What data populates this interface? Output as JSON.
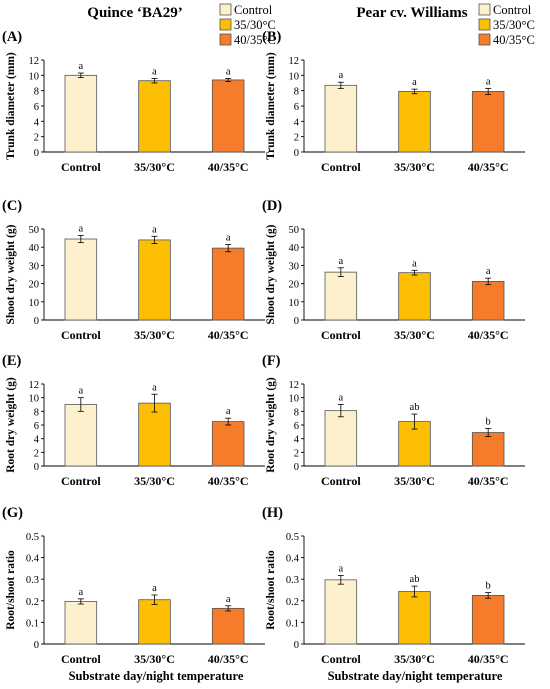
{
  "columns": [
    {
      "title": "Quince ‘BA29’"
    },
    {
      "title": "Pear cv. Williams"
    }
  ],
  "legend": {
    "entries": [
      {
        "label": "Control",
        "color": "#fdf0cd"
      },
      {
        "label": "35/30°C",
        "color": "#fcbf04"
      },
      {
        "label": "40/35°C",
        "color": "#f47c2a"
      }
    ],
    "placement": "top-right of each column"
  },
  "xlabel": "Substrate day/night temperature",
  "chart_data": [
    {
      "panel": "(A)",
      "type": "bar",
      "column": 0,
      "row": 0,
      "categories": [
        "Control",
        "35/30°C",
        "40/35°C"
      ],
      "values": [
        10.0,
        9.3,
        9.4
      ],
      "errors": [
        0.3,
        0.3,
        0.2
      ],
      "letters": [
        "a",
        "a",
        "a"
      ],
      "ylabel": "Trunk diameter (mm)",
      "ylim": [
        0,
        12
      ],
      "yticks": [
        0,
        2,
        4,
        6,
        8,
        10,
        12
      ]
    },
    {
      "panel": "(B)",
      "type": "bar",
      "column": 1,
      "row": 0,
      "categories": [
        "Control",
        "35/30°C",
        "40/35°C"
      ],
      "values": [
        8.7,
        7.9,
        7.9
      ],
      "errors": [
        0.4,
        0.3,
        0.4
      ],
      "letters": [
        "a",
        "a",
        "a"
      ],
      "ylabel": "Trunk diameter (mm)",
      "ylim": [
        0,
        12
      ],
      "yticks": [
        0,
        2,
        4,
        6,
        8,
        10,
        12
      ]
    },
    {
      "panel": "(C)",
      "type": "bar",
      "column": 0,
      "row": 1,
      "categories": [
        "Control",
        "35/30°C",
        "40/35°C"
      ],
      "values": [
        44.5,
        44.0,
        39.5
      ],
      "errors": [
        2.0,
        2.0,
        2.0
      ],
      "letters": [
        "a",
        "a",
        "a"
      ],
      "ylabel": "Shoot dry weight (g)",
      "ylim": [
        0,
        50
      ],
      "yticks": [
        0,
        10,
        20,
        30,
        40,
        50
      ]
    },
    {
      "panel": "(D)",
      "type": "bar",
      "column": 1,
      "row": 1,
      "categories": [
        "Control",
        "35/30°C",
        "40/35°C"
      ],
      "values": [
        26.3,
        26.0,
        21.2
      ],
      "errors": [
        2.4,
        1.3,
        1.8
      ],
      "letters": [
        "a",
        "a",
        "a"
      ],
      "ylabel": "Shoot dry weight (g)",
      "ylim": [
        0,
        50
      ],
      "yticks": [
        0,
        10,
        20,
        30,
        40,
        50
      ]
    },
    {
      "panel": "(E)",
      "type": "bar",
      "column": 0,
      "row": 2,
      "categories": [
        "Control",
        "35/30°C",
        "40/35°C"
      ],
      "values": [
        9.0,
        9.2,
        6.5
      ],
      "errors": [
        1.0,
        1.3,
        0.5
      ],
      "letters": [
        "a",
        "a",
        "a"
      ],
      "ylabel": "Root dry weight (g)",
      "ylim": [
        0,
        12
      ],
      "yticks": [
        0,
        2,
        4,
        6,
        8,
        10,
        12
      ]
    },
    {
      "panel": "(F)",
      "type": "bar",
      "column": 1,
      "row": 2,
      "categories": [
        "Control",
        "35/30°C",
        "40/35°C"
      ],
      "values": [
        8.1,
        6.5,
        4.9
      ],
      "errors": [
        0.9,
        1.1,
        0.6
      ],
      "letters": [
        "a",
        "ab",
        "b"
      ],
      "ylabel": "Root dry weight (g)",
      "ylim": [
        0,
        12
      ],
      "yticks": [
        0,
        2,
        4,
        6,
        8,
        10,
        12
      ]
    },
    {
      "panel": "(G)",
      "type": "bar",
      "column": 0,
      "row": 3,
      "categories": [
        "Control",
        "35/30°C",
        "40/35°C"
      ],
      "values": [
        0.197,
        0.205,
        0.165
      ],
      "errors": [
        0.012,
        0.022,
        0.012
      ],
      "letters": [
        "a",
        "a",
        "a"
      ],
      "ylabel": "Root/shoot ratio",
      "ylim": [
        0,
        0.5
      ],
      "yticks": [
        0,
        0.1,
        0.2,
        0.3,
        0.4,
        0.5
      ]
    },
    {
      "panel": "(H)",
      "type": "bar",
      "column": 1,
      "row": 3,
      "categories": [
        "Control",
        "35/30°C",
        "40/35°C"
      ],
      "values": [
        0.297,
        0.243,
        0.225
      ],
      "errors": [
        0.02,
        0.025,
        0.013
      ],
      "letters": [
        "a",
        "ab",
        "b"
      ],
      "ylabel": "Root/shoot ratio",
      "ylim": [
        0,
        0.5
      ],
      "yticks": [
        0,
        0.1,
        0.2,
        0.3,
        0.4,
        0.5
      ]
    }
  ]
}
